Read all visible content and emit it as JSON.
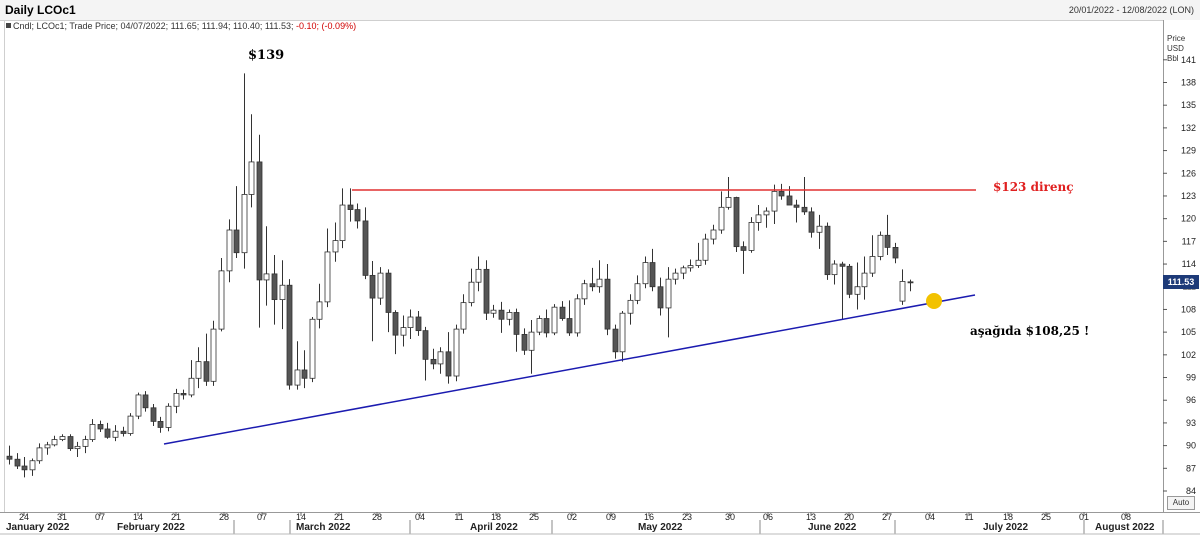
{
  "header": {
    "title": "Daily LCOc1",
    "date_range": "20/01/2022 - 12/08/2022 (LON)",
    "ohlc_prefix": "Cndl; LCOc1; Trade Price; 04/07/2022; 111.65; 111.94; 110.40; 111.53;",
    "ohlc_change": "-0.10; (-0.09%)"
  },
  "axis": {
    "units": [
      "Price",
      "USD",
      "Bbl"
    ],
    "auto_label": "Auto",
    "last_price": "111.53"
  },
  "annotations": {
    "peak_label": "$139",
    "resistance_label": "$123 direnç",
    "support_label": "aşağıda $108,25 !"
  },
  "colors": {
    "up_candle": "#ffffff",
    "down_candle": "#555555",
    "resistance_line": "#e03030",
    "support_line": "#1b1bb0",
    "marker": "#f2c200",
    "last_price_box": "#1d3a78"
  },
  "chart_data": {
    "type": "candlestick",
    "y_ticks": [
      84,
      87,
      90,
      93,
      96,
      99,
      102,
      105,
      108,
      111,
      114,
      117,
      120,
      123,
      126,
      129,
      132,
      135,
      138,
      141
    ],
    "ylim": [
      82,
      143
    ],
    "x_day_ticks": [
      "24",
      "31",
      "07",
      "14",
      "21",
      "28",
      "07",
      "14",
      "21",
      "28",
      "04",
      "11",
      "18",
      "25",
      "02",
      "09",
      "16",
      "23",
      "30",
      "06",
      "13",
      "20",
      "27",
      "04",
      "11",
      "18",
      "25",
      "01",
      "08"
    ],
    "x_month_labels": [
      "January 2022",
      "February 2022",
      "March 2022",
      "April 2022",
      "May 2022",
      "June 2022",
      "July 2022",
      "August 2022"
    ],
    "last_close": 111.53,
    "resistance_level": 123,
    "support_target": 108.25,
    "support_line": [
      {
        "date": "2022-02-17",
        "value": 90.0
      },
      {
        "date": "2022-07-08",
        "value": 110.0
      }
    ],
    "candles": [
      {
        "o": 88.6,
        "h": 90.0,
        "l": 87.5,
        "c": 88.2
      },
      {
        "o": 88.2,
        "h": 89.0,
        "l": 86.9,
        "c": 87.3
      },
      {
        "o": 87.3,
        "h": 88.5,
        "l": 85.8,
        "c": 86.8
      },
      {
        "o": 86.8,
        "h": 88.3,
        "l": 86.0,
        "c": 88.0
      },
      {
        "o": 88.0,
        "h": 90.3,
        "l": 87.6,
        "c": 89.7
      },
      {
        "o": 89.7,
        "h": 90.5,
        "l": 88.8,
        "c": 90.1
      },
      {
        "o": 90.1,
        "h": 91.3,
        "l": 89.9,
        "c": 90.8
      },
      {
        "o": 90.8,
        "h": 91.5,
        "l": 90.6,
        "c": 91.2
      },
      {
        "o": 91.2,
        "h": 91.5,
        "l": 89.3,
        "c": 89.6
      },
      {
        "o": 89.6,
        "h": 90.5,
        "l": 88.5,
        "c": 89.9
      },
      {
        "o": 89.9,
        "h": 91.3,
        "l": 89.0,
        "c": 90.8
      },
      {
        "o": 90.8,
        "h": 93.5,
        "l": 90.5,
        "c": 92.8
      },
      {
        "o": 92.8,
        "h": 93.3,
        "l": 91.8,
        "c": 92.2
      },
      {
        "o": 92.2,
        "h": 93.0,
        "l": 90.9,
        "c": 91.1
      },
      {
        "o": 91.1,
        "h": 92.7,
        "l": 90.6,
        "c": 91.9
      },
      {
        "o": 91.9,
        "h": 92.5,
        "l": 91.2,
        "c": 91.6
      },
      {
        "o": 91.6,
        "h": 94.3,
        "l": 91.3,
        "c": 93.9
      },
      {
        "o": 93.9,
        "h": 97.0,
        "l": 93.5,
        "c": 96.7
      },
      {
        "o": 96.7,
        "h": 97.2,
        "l": 94.5,
        "c": 95.0
      },
      {
        "o": 95.0,
        "h": 95.5,
        "l": 92.6,
        "c": 93.2
      },
      {
        "o": 93.2,
        "h": 93.8,
        "l": 91.7,
        "c": 92.4
      },
      {
        "o": 92.4,
        "h": 95.6,
        "l": 91.9,
        "c": 95.2
      },
      {
        "o": 95.2,
        "h": 97.5,
        "l": 94.3,
        "c": 96.9
      },
      {
        "o": 96.9,
        "h": 97.4,
        "l": 96.1,
        "c": 96.7
      },
      {
        "o": 96.7,
        "h": 101.3,
        "l": 96.4,
        "c": 98.9
      },
      {
        "o": 98.9,
        "h": 103.0,
        "l": 97.6,
        "c": 101.1
      },
      {
        "o": 101.1,
        "h": 104.8,
        "l": 97.9,
        "c": 98.5
      },
      {
        "o": 98.5,
        "h": 106.5,
        "l": 97.9,
        "c": 105.4
      },
      {
        "o": 105.4,
        "h": 114.8,
        "l": 105.1,
        "c": 113.1
      },
      {
        "o": 113.1,
        "h": 119.9,
        "l": 111.6,
        "c": 118.5
      },
      {
        "o": 118.5,
        "h": 124.3,
        "l": 114.8,
        "c": 115.5
      },
      {
        "o": 115.5,
        "h": 139.2,
        "l": 113.4,
        "c": 123.2
      },
      {
        "o": 123.2,
        "h": 133.8,
        "l": 121.5,
        "c": 127.5
      },
      {
        "o": 127.5,
        "h": 131.1,
        "l": 105.6,
        "c": 111.9
      },
      {
        "o": 111.9,
        "h": 119.0,
        "l": 108.5,
        "c": 112.7
      },
      {
        "o": 112.7,
        "h": 115.2,
        "l": 106.0,
        "c": 109.3
      },
      {
        "o": 109.3,
        "h": 114.5,
        "l": 105.4,
        "c": 111.2
      },
      {
        "o": 111.2,
        "h": 112.0,
        "l": 97.4,
        "c": 98.0
      },
      {
        "o": 98.0,
        "h": 103.8,
        "l": 97.4,
        "c": 100.0
      },
      {
        "o": 100.0,
        "h": 102.6,
        "l": 97.6,
        "c": 98.9
      },
      {
        "o": 98.9,
        "h": 107.0,
        "l": 98.4,
        "c": 106.7
      },
      {
        "o": 106.7,
        "h": 111.4,
        "l": 105.5,
        "c": 109.0
      },
      {
        "o": 109.0,
        "h": 118.7,
        "l": 108.3,
        "c": 115.6
      },
      {
        "o": 115.6,
        "h": 119.5,
        "l": 114.3,
        "c": 117.1
      },
      {
        "o": 117.1,
        "h": 124.0,
        "l": 116.1,
        "c": 121.8
      },
      {
        "o": 121.8,
        "h": 124.0,
        "l": 119.6,
        "c": 121.2
      },
      {
        "o": 121.2,
        "h": 122.0,
        "l": 118.7,
        "c": 119.7
      },
      {
        "o": 119.7,
        "h": 121.5,
        "l": 112.0,
        "c": 112.5
      },
      {
        "o": 112.5,
        "h": 114.4,
        "l": 103.8,
        "c": 109.5
      },
      {
        "o": 109.5,
        "h": 113.6,
        "l": 108.6,
        "c": 112.8
      },
      {
        "o": 112.8,
        "h": 113.3,
        "l": 105.0,
        "c": 107.6
      },
      {
        "o": 107.6,
        "h": 107.9,
        "l": 102.1,
        "c": 104.6
      },
      {
        "o": 104.6,
        "h": 107.2,
        "l": 103.1,
        "c": 105.6
      },
      {
        "o": 105.6,
        "h": 108.0,
        "l": 104.1,
        "c": 107.0
      },
      {
        "o": 107.0,
        "h": 107.8,
        "l": 104.5,
        "c": 105.2
      },
      {
        "o": 105.2,
        "h": 105.7,
        "l": 98.6,
        "c": 101.4
      },
      {
        "o": 101.4,
        "h": 102.8,
        "l": 100.1,
        "c": 100.8
      },
      {
        "o": 100.8,
        "h": 103.0,
        "l": 99.5,
        "c": 102.4
      },
      {
        "o": 102.4,
        "h": 105.0,
        "l": 98.2,
        "c": 99.2
      },
      {
        "o": 99.2,
        "h": 106.0,
        "l": 98.5,
        "c": 105.4
      },
      {
        "o": 105.4,
        "h": 110.0,
        "l": 104.8,
        "c": 108.9
      },
      {
        "o": 108.9,
        "h": 113.4,
        "l": 108.4,
        "c": 111.6
      },
      {
        "o": 111.6,
        "h": 115.0,
        "l": 110.4,
        "c": 113.3
      },
      {
        "o": 113.3,
        "h": 114.5,
        "l": 106.6,
        "c": 107.5
      },
      {
        "o": 107.5,
        "h": 108.6,
        "l": 106.9,
        "c": 107.9
      },
      {
        "o": 107.9,
        "h": 109.0,
        "l": 104.9,
        "c": 106.7
      },
      {
        "o": 106.7,
        "h": 108.0,
        "l": 105.9,
        "c": 107.6
      },
      {
        "o": 107.6,
        "h": 108.1,
        "l": 102.4,
        "c": 104.7
      },
      {
        "o": 104.7,
        "h": 105.5,
        "l": 102.0,
        "c": 102.6
      },
      {
        "o": 102.6,
        "h": 106.6,
        "l": 99.5,
        "c": 105.0
      },
      {
        "o": 105.0,
        "h": 107.2,
        "l": 104.6,
        "c": 106.8
      },
      {
        "o": 106.8,
        "h": 108.0,
        "l": 104.3,
        "c": 104.9
      },
      {
        "o": 104.9,
        "h": 108.7,
        "l": 104.6,
        "c": 108.3
      },
      {
        "o": 108.3,
        "h": 109.1,
        "l": 106.5,
        "c": 106.8
      },
      {
        "o": 106.8,
        "h": 109.2,
        "l": 104.5,
        "c": 104.9
      },
      {
        "o": 104.9,
        "h": 110.0,
        "l": 104.4,
        "c": 109.4
      },
      {
        "o": 109.4,
        "h": 111.9,
        "l": 108.6,
        "c": 111.4
      },
      {
        "o": 111.4,
        "h": 113.5,
        "l": 110.4,
        "c": 111.0
      },
      {
        "o": 111.0,
        "h": 114.5,
        "l": 110.2,
        "c": 112.0
      },
      {
        "o": 112.0,
        "h": 114.0,
        "l": 104.6,
        "c": 105.4
      },
      {
        "o": 105.4,
        "h": 106.0,
        "l": 101.5,
        "c": 102.4
      },
      {
        "o": 102.4,
        "h": 107.8,
        "l": 101.1,
        "c": 107.5
      },
      {
        "o": 107.5,
        "h": 110.0,
        "l": 106.0,
        "c": 109.2
      },
      {
        "o": 109.2,
        "h": 112.5,
        "l": 108.7,
        "c": 111.4
      },
      {
        "o": 111.4,
        "h": 115.0,
        "l": 110.8,
        "c": 114.2
      },
      {
        "o": 114.2,
        "h": 116.0,
        "l": 110.4,
        "c": 111.0
      },
      {
        "o": 111.0,
        "h": 112.2,
        "l": 107.2,
        "c": 108.2
      },
      {
        "o": 108.2,
        "h": 113.6,
        "l": 104.3,
        "c": 112.0
      },
      {
        "o": 112.0,
        "h": 113.4,
        "l": 111.3,
        "c": 112.8
      },
      {
        "o": 112.8,
        "h": 113.8,
        "l": 112.0,
        "c": 113.5
      },
      {
        "o": 113.5,
        "h": 114.6,
        "l": 113.0,
        "c": 113.8
      },
      {
        "o": 113.8,
        "h": 116.8,
        "l": 113.5,
        "c": 114.5
      },
      {
        "o": 114.5,
        "h": 118.0,
        "l": 113.9,
        "c": 117.3
      },
      {
        "o": 117.3,
        "h": 119.2,
        "l": 116.6,
        "c": 118.5
      },
      {
        "o": 118.5,
        "h": 123.6,
        "l": 118.0,
        "c": 121.5
      },
      {
        "o": 121.5,
        "h": 125.5,
        "l": 121.2,
        "c": 122.8
      },
      {
        "o": 122.8,
        "h": 122.9,
        "l": 115.6,
        "c": 116.3
      },
      {
        "o": 116.3,
        "h": 117.0,
        "l": 112.7,
        "c": 115.8
      },
      {
        "o": 115.8,
        "h": 120.2,
        "l": 115.5,
        "c": 119.5
      },
      {
        "o": 119.5,
        "h": 121.8,
        "l": 118.4,
        "c": 120.5
      },
      {
        "o": 120.5,
        "h": 121.5,
        "l": 118.8,
        "c": 121.0
      },
      {
        "o": 121.0,
        "h": 124.5,
        "l": 119.3,
        "c": 123.6
      },
      {
        "o": 123.6,
        "h": 124.6,
        "l": 122.5,
        "c": 123.0
      },
      {
        "o": 123.0,
        "h": 124.3,
        "l": 122.0,
        "c": 121.8
      },
      {
        "o": 121.8,
        "h": 122.5,
        "l": 119.5,
        "c": 121.5
      },
      {
        "o": 121.5,
        "h": 125.5,
        "l": 120.5,
        "c": 120.9
      },
      {
        "o": 120.9,
        "h": 121.5,
        "l": 117.5,
        "c": 118.2
      },
      {
        "o": 118.2,
        "h": 120.5,
        "l": 116.0,
        "c": 119.0
      },
      {
        "o": 119.0,
        "h": 119.5,
        "l": 111.9,
        "c": 112.6
      },
      {
        "o": 112.6,
        "h": 114.5,
        "l": 111.3,
        "c": 114.0
      },
      {
        "o": 114.0,
        "h": 114.3,
        "l": 106.7,
        "c": 113.7
      },
      {
        "o": 113.7,
        "h": 114.0,
        "l": 109.5,
        "c": 110.0
      },
      {
        "o": 110.0,
        "h": 114.2,
        "l": 108.0,
        "c": 111.0
      },
      {
        "o": 111.0,
        "h": 115.0,
        "l": 109.3,
        "c": 112.8
      },
      {
        "o": 112.8,
        "h": 117.8,
        "l": 112.3,
        "c": 115.0
      },
      {
        "o": 115.0,
        "h": 118.3,
        "l": 114.5,
        "c": 117.8
      },
      {
        "o": 117.8,
        "h": 120.5,
        "l": 115.2,
        "c": 116.2
      },
      {
        "o": 116.2,
        "h": 116.8,
        "l": 114.1,
        "c": 114.8
      },
      {
        "o": 109.1,
        "h": 113.3,
        "l": 108.6,
        "c": 111.7
      },
      {
        "o": 111.65,
        "h": 111.94,
        "l": 110.4,
        "c": 111.53
      }
    ]
  }
}
